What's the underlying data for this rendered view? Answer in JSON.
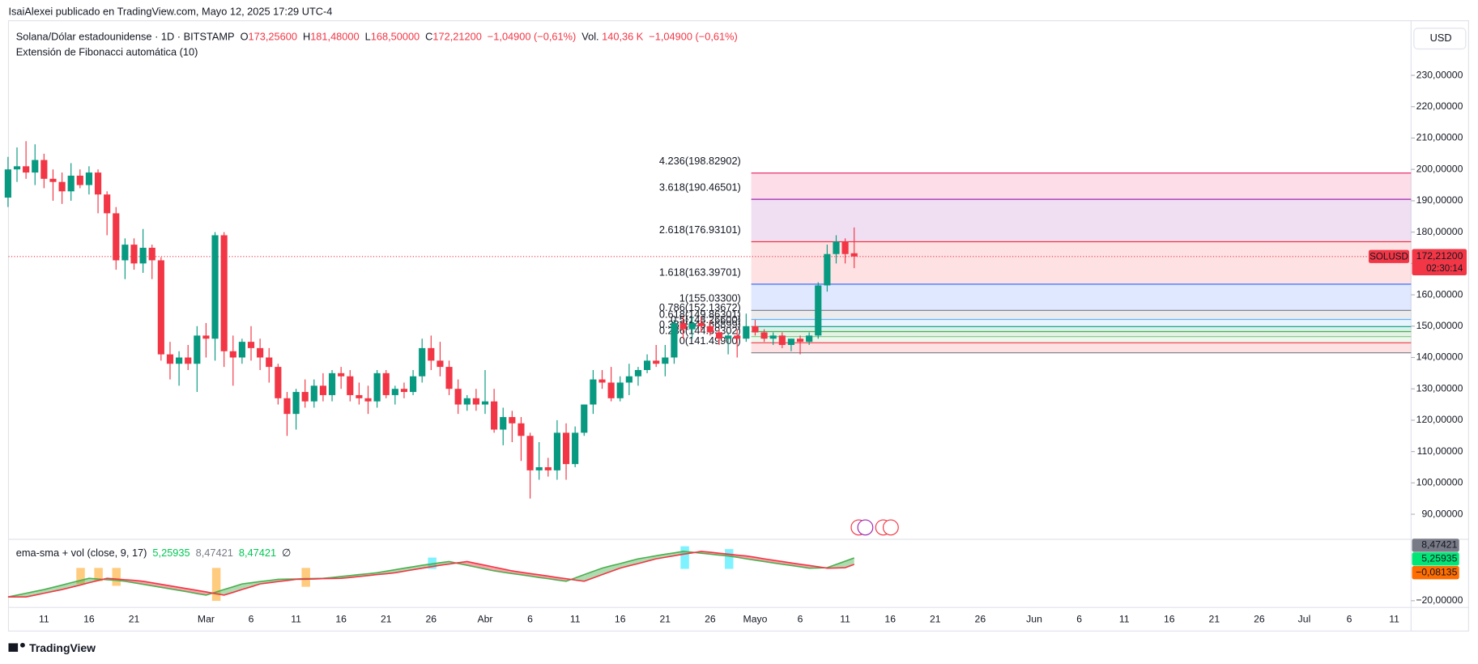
{
  "ui": {
    "publisher": "IsaiAlexei publicado en TradingView.com, Mayo 12, 2025 17:29 UTC-4",
    "symbol": "Solana/Dólar estadounidense · 1D · BITSTAMP",
    "ohlc": [
      {
        "key": "O",
        "value": "173,25600"
      },
      {
        "key": "H",
        "value": "181,48000"
      },
      {
        "key": "L",
        "value": "168,50000"
      },
      {
        "key": "C",
        "value": "172,21200"
      }
    ],
    "change": "−1,04900 (−0,61%)",
    "volume_label": "Vol.",
    "volume": "140,36 K",
    "volume_change": "−1,04900 (−0,61%)",
    "study": "Extensión de Fibonacci automática (10)",
    "currency": "USD",
    "logo": "TradingView"
  },
  "chart_data": {
    "type": "candlestick",
    "up_color": "#089981",
    "down_color": "#f23645",
    "categories": [
      null,
      null,
      null,
      null,
      "11",
      null,
      null,
      null,
      null,
      "16",
      null,
      null,
      null,
      null,
      "21",
      null,
      null,
      null,
      null,
      null,
      null,
      null,
      "Mar",
      null,
      null,
      null,
      null,
      "6",
      null,
      null,
      null,
      null,
      "11",
      null,
      null,
      null,
      null,
      "16",
      null,
      null,
      null,
      null,
      "21",
      null,
      null,
      null,
      null,
      "26",
      null,
      null,
      null,
      null,
      null,
      "Abr",
      null,
      null,
      null,
      null,
      "6",
      null,
      null,
      null,
      null,
      "11",
      null,
      null,
      null,
      null,
      "16",
      null,
      null,
      null,
      null,
      "21",
      null,
      null,
      null,
      null,
      "26",
      null,
      null,
      null,
      null,
      "Mayo",
      null,
      null,
      null,
      null,
      "6",
      null,
      null,
      null,
      null,
      "11",
      null,
      null,
      null,
      null,
      "16",
      null,
      null,
      null,
      null,
      "21",
      null,
      null,
      null,
      null,
      "26",
      null,
      null,
      null,
      null,
      null,
      "Jun",
      null,
      null,
      null,
      null,
      "6",
      null,
      null,
      null,
      null,
      "11",
      null,
      null,
      null,
      null,
      "16",
      null,
      null,
      null,
      null,
      "21",
      null,
      null,
      null,
      null,
      "26",
      null,
      null,
      null,
      null,
      "Jul",
      null,
      null,
      null,
      null,
      "6",
      null,
      null,
      null,
      null,
      "11",
      null,
      null
    ],
    "open": [
      191,
      200,
      201,
      199,
      203,
      197,
      196,
      193,
      198,
      195,
      199,
      192,
      186,
      171,
      176,
      170,
      175,
      171,
      141,
      138,
      140,
      138,
      147,
      146,
      179,
      142,
      140,
      145,
      143,
      140,
      137,
      127,
      122,
      129,
      126,
      131,
      128,
      135,
      134,
      128,
      127,
      126,
      135,
      128,
      130,
      129,
      134,
      143,
      139,
      137,
      130,
      125,
      127,
      125,
      126,
      117,
      121,
      119,
      115,
      104,
      105,
      104,
      116,
      106,
      116,
      125,
      133,
      132,
      127,
      132,
      134,
      136,
      139,
      138,
      140,
      151,
      149,
      151,
      150,
      148,
      146,
      147,
      146,
      150,
      148,
      146,
      147,
      144,
      146,
      145,
      147,
      163,
      173,
      177,
      173.256,
      null,
      null,
      null,
      null,
      null,
      null,
      null,
      null,
      null,
      null,
      null,
      null,
      null,
      null,
      null,
      null,
      null,
      null,
      null,
      null,
      null,
      null,
      null,
      null,
      null,
      null,
      null,
      null,
      null,
      null,
      null,
      null,
      null,
      null,
      null,
      null,
      null,
      null,
      null,
      null,
      null,
      null,
      null,
      null,
      null,
      null,
      null,
      null,
      null,
      null,
      null,
      null,
      null,
      null,
      null,
      null,
      null,
      null,
      null,
      null,
      null,
      null
    ],
    "high": [
      204,
      207,
      209,
      208,
      205,
      200,
      199,
      202,
      200,
      201,
      200,
      193,
      188,
      178,
      178,
      181,
      176,
      172,
      145,
      142,
      144,
      150,
      151,
      180,
      180,
      147,
      146,
      150,
      146,
      143,
      138,
      129,
      130,
      133,
      133,
      135,
      136,
      137,
      136,
      132,
      131,
      136,
      136,
      131,
      132,
      136,
      146,
      147,
      145,
      139,
      133,
      128,
      130,
      136,
      130,
      124,
      123,
      121,
      116,
      113,
      108,
      120,
      119,
      118,
      125,
      136,
      136,
      137,
      134,
      138,
      137,
      141,
      144,
      144,
      152,
      153,
      153,
      153,
      152,
      149,
      148,
      149,
      154,
      152,
      149,
      148,
      148,
      146,
      147,
      148,
      164,
      176,
      179,
      178,
      181.48,
      null,
      null,
      null,
      null,
      null,
      null,
      null,
      null,
      null,
      null,
      null,
      null,
      null,
      null,
      null,
      null,
      null,
      null,
      null,
      null,
      null,
      null,
      null,
      null,
      null,
      null,
      null,
      null,
      null,
      null,
      null,
      null,
      null,
      null,
      null,
      null,
      null,
      null,
      null,
      null,
      null,
      null,
      null,
      null,
      null,
      null,
      null,
      null,
      null,
      null,
      null,
      null,
      null,
      null,
      null,
      null,
      null,
      null,
      null,
      null,
      null,
      null
    ],
    "low": [
      188,
      196,
      197,
      195,
      194,
      190,
      189,
      190,
      194,
      192,
      186,
      179,
      168,
      165,
      168,
      167,
      165,
      139,
      133,
      131,
      136,
      129,
      140,
      139,
      137,
      131,
      138,
      139,
      136,
      132,
      125,
      115,
      117,
      124,
      124,
      126,
      126,
      130,
      126,
      125,
      122,
      124,
      127,
      125,
      127,
      128,
      132,
      136,
      134,
      128,
      122,
      123,
      123,
      122,
      116,
      112,
      113,
      107,
      95,
      101,
      102,
      101,
      101,
      105,
      115,
      122,
      130,
      126,
      126,
      128,
      131,
      135,
      137,
      134,
      138,
      146,
      146,
      148,
      147,
      144,
      141,
      140,
      145,
      147,
      145,
      144,
      143,
      142,
      141,
      144,
      146,
      161,
      170,
      170,
      168.5,
      null,
      null,
      null,
      null,
      null,
      null,
      null,
      null,
      null,
      null,
      null,
      null,
      null,
      null,
      null,
      null,
      null,
      null,
      null,
      null,
      null,
      null,
      null,
      null,
      null,
      null,
      null,
      null,
      null,
      null,
      null,
      null,
      null,
      null,
      null,
      null,
      null,
      null,
      null,
      null,
      null,
      null,
      null,
      null,
      null,
      null,
      null,
      null,
      null,
      null,
      null,
      null,
      null,
      null,
      null,
      null,
      null,
      null,
      null,
      null,
      null,
      null
    ],
    "close": [
      200,
      201,
      199,
      203,
      197,
      196,
      193,
      198,
      195,
      199,
      192,
      186,
      171,
      176,
      170,
      175,
      171,
      141,
      138,
      140,
      138,
      147,
      146,
      179,
      142,
      140,
      145,
      143,
      140,
      137,
      127,
      122,
      129,
      126,
      131,
      128,
      135,
      134,
      128,
      127,
      126,
      135,
      128,
      130,
      129,
      134,
      143,
      139,
      137,
      130,
      125,
      127,
      125,
      126,
      117,
      121,
      119,
      115,
      104,
      105,
      104,
      116,
      106,
      116,
      125,
      133,
      132,
      127,
      132,
      134,
      136,
      139,
      138,
      140,
      151,
      149,
      151,
      150,
      148,
      146,
      147,
      146,
      150,
      148,
      146,
      147,
      144,
      146,
      145,
      147,
      163,
      173,
      177,
      173,
      172.212,
      null,
      null,
      null,
      null,
      null,
      null,
      null,
      null,
      null,
      null,
      null,
      null,
      null,
      null,
      null,
      null,
      null,
      null,
      null,
      null,
      null,
      null,
      null,
      null,
      null,
      null,
      null,
      null,
      null,
      null,
      null,
      null,
      null,
      null,
      null,
      null,
      null,
      null,
      null,
      null,
      null,
      null,
      null,
      null,
      null,
      null,
      null,
      null,
      null,
      null,
      null,
      null,
      null,
      null,
      null,
      null,
      null,
      null,
      null,
      null,
      null,
      null
    ],
    "ylim": [
      82,
      245
    ],
    "yticks": [
      {
        "value": 90,
        "label": "90,00000"
      },
      {
        "value": 100,
        "label": "100,00000"
      },
      {
        "value": 110,
        "label": "110,00000"
      },
      {
        "value": 120,
        "label": "120,00000"
      },
      {
        "value": 130,
        "label": "130,00000"
      },
      {
        "value": 140,
        "label": "140,00000"
      },
      {
        "value": 150,
        "label": "150,00000"
      },
      {
        "value": 160,
        "label": "160,00000"
      },
      {
        "value": 170,
        "label": "170,00000"
      },
      {
        "value": 180,
        "label": "180,00000"
      },
      {
        "value": 190,
        "label": "190,00000"
      },
      {
        "value": 200,
        "label": "200,00000"
      },
      {
        "value": 210,
        "label": "210,00000"
      },
      {
        "value": 220,
        "label": "220,00000"
      },
      {
        "value": 230,
        "label": "230,00000"
      }
    ],
    "last_price": {
      "value": 172.212,
      "label": "172,21200",
      "symbol": "SOLUSD",
      "countdown": "02:30:14",
      "color": "#f23645"
    },
    "fib_levels": [
      {
        "label": "4.236(198.82902)",
        "value": 198.82902,
        "color": "#e91e63"
      },
      {
        "label": "3.618(190.46501)",
        "value": 190.46501,
        "color": "#9c27b0"
      },
      {
        "label": "2.618(176.93101)",
        "value": 176.93101,
        "color": "#f23645"
      },
      {
        "label": "1.618(163.39701)",
        "value": 163.39701,
        "color": "#2962ff"
      },
      {
        "label": "1(155.03300)",
        "value": 155.033,
        "color": "#787b86"
      },
      {
        "label": "0.786(152.13672)",
        "value": 152.13672,
        "color": "#64b5f6"
      },
      {
        "label": "0.618(149.86301)",
        "value": 149.86301,
        "color": "#089981"
      },
      {
        "label": "0.5(148.26600)",
        "value": 148.266,
        "color": "#4caf50"
      },
      {
        "label": "0.382(146.66899)",
        "value": 146.66899,
        "color": "#81c784"
      },
      {
        "label": "0.236(144.69302)",
        "value": 144.69302,
        "color": "#f23645"
      },
      {
        "label": "0(141.49900)",
        "value": 141.499,
        "color": "#787b86"
      }
    ],
    "indicator": {
      "title": "ema-sma + vol (close, 9, 17)",
      "legend_values": [
        {
          "text": "5,25935",
          "color": "#00c853"
        },
        {
          "text": "8,47421",
          "color": "#787b86"
        },
        {
          "text": "8,47421",
          "color": "#00c853"
        },
        {
          "text": "∅",
          "color": "#131722"
        }
      ],
      "ylim": [
        -24,
        16
      ],
      "yticks": [
        {
          "value": -20,
          "label": "−20,00000"
        }
      ],
      "badges": [
        {
          "label": "8,47421",
          "color": "#787b86"
        },
        {
          "label": "5,25935",
          "color": "#00e676"
        },
        {
          "label": "−0,08135",
          "color": "#ff6d00"
        }
      ],
      "up_color": "#4caf50",
      "down_color": "#f23645",
      "series": [
        {
          "color": "#4caf50",
          "values": [
            -17.8,
            -16.7,
            -15.6,
            -14.5,
            -13.4,
            -12.1,
            -10.8,
            -9.4,
            -8.1,
            -6.8,
            -7.2,
            -7.6,
            -8.0,
            -8.5,
            -9.4,
            -10.3,
            -11.2,
            -12.1,
            -13.0,
            -13.9,
            -14.8,
            -15.8,
            -16.7,
            -15.1,
            -13.4,
            -11.8,
            -10.1,
            -9.4,
            -8.7,
            -8.1,
            -7.4,
            -7.3,
            -7.2,
            -7.0,
            -6.9,
            -6.8,
            -6.3,
            -5.7,
            -5.2,
            -4.6,
            -4.1,
            -3.5,
            -2.6,
            -1.7,
            -0.8,
            0.0,
            0.9,
            1.6,
            2.4,
            3.1,
            2.0,
            0.9,
            -0.2,
            -1.3,
            -2.4,
            -3.2,
            -4.0,
            -4.7,
            -5.5,
            -6.3,
            -7.0,
            -7.8,
            -8.5,
            -6.6,
            -4.6,
            -2.7,
            -0.8,
            0.6,
            1.9,
            3.3,
            4.7,
            5.6,
            6.5,
            7.4,
            8.2,
            9.1,
            8.6,
            8.0,
            7.5,
            6.9,
            6.4,
            5.6,
            4.7,
            3.9,
            3.1,
            2.3,
            1.5,
            0.8,
            0.0,
            -0.8,
            -0.7,
            -0.5,
            1.4,
            3.3,
            5.26,
            null,
            null,
            null,
            null,
            null,
            null,
            null,
            null,
            null,
            null,
            null,
            null,
            null,
            null,
            null,
            null,
            null,
            null,
            null,
            null,
            null,
            null,
            null,
            null,
            null,
            null,
            null,
            null,
            null,
            null,
            null,
            null,
            null,
            null,
            null,
            null,
            null,
            null,
            null,
            null,
            null,
            null,
            null,
            null,
            null,
            null,
            null,
            null,
            null,
            null,
            null,
            null,
            null,
            null,
            null,
            null,
            null,
            null,
            null,
            null,
            null,
            null
          ]
        },
        {
          "color": "#f23645",
          "values": [
            -17.8,
            -17.8,
            -17.8,
            -16.7,
            -15.6,
            -14.5,
            -13.4,
            -12.1,
            -10.8,
            -9.4,
            -8.1,
            -6.8,
            -7.2,
            -7.6,
            -8.0,
            -8.5,
            -9.4,
            -10.3,
            -11.2,
            -12.1,
            -13.0,
            -13.9,
            -14.8,
            -15.8,
            -16.7,
            -15.1,
            -13.4,
            -11.8,
            -10.1,
            -9.4,
            -8.7,
            -8.1,
            -7.4,
            -7.3,
            -7.2,
            -7.0,
            -6.9,
            -6.8,
            -6.3,
            -5.7,
            -5.2,
            -4.6,
            -4.1,
            -3.5,
            -2.6,
            -1.7,
            -0.8,
            0.0,
            0.9,
            1.6,
            2.4,
            3.1,
            2.0,
            0.9,
            -0.2,
            -1.3,
            -2.4,
            -3.2,
            -4.0,
            -4.7,
            -5.5,
            -6.3,
            -7.0,
            -7.8,
            -8.5,
            -6.6,
            -4.6,
            -2.7,
            -0.8,
            0.6,
            1.9,
            3.3,
            4.7,
            5.6,
            6.5,
            7.4,
            8.2,
            9.1,
            8.6,
            8.0,
            7.5,
            6.9,
            6.4,
            5.6,
            4.7,
            3.9,
            3.1,
            2.3,
            1.5,
            0.8,
            0.0,
            -0.8,
            -0.7,
            -0.5,
            1.4,
            null,
            null,
            null,
            null,
            null,
            null,
            null,
            null,
            null,
            null,
            null,
            null,
            null,
            null,
            null,
            null,
            null,
            null,
            null,
            null,
            null,
            null,
            null,
            null,
            null,
            null,
            null,
            null,
            null,
            null,
            null,
            null,
            null,
            null,
            null,
            null,
            null,
            null,
            null,
            null,
            null,
            null,
            null,
            null,
            null,
            null,
            null,
            null,
            null,
            null,
            null,
            null,
            null,
            null,
            null,
            null,
            null,
            null,
            null,
            null,
            null,
            null
          ]
        }
      ]
    }
  }
}
